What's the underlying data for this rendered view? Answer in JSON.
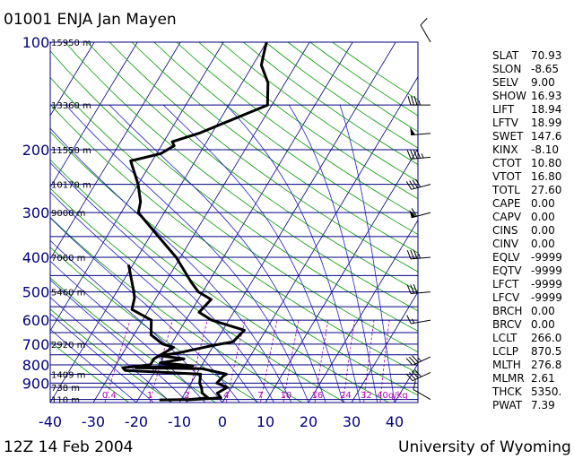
{
  "header": {
    "title": "01001 ENJA Jan Mayen",
    "date": "12Z 14 Feb 2004",
    "credit": "University of Wyoming"
  },
  "colors": {
    "axis_text": "#000080",
    "isobar": "#000080",
    "isotherm": "#000080",
    "dry_adiabat": "#009900",
    "moist_adiabat": "#2020c0",
    "mixing_ratio": "#b000b0",
    "sounding": "#000000"
  },
  "chart_data": {
    "type": "line",
    "chart_kind": "skew-T log-P diagram",
    "xlim": [
      -40,
      45
    ],
    "ylim": [
      1020,
      100
    ],
    "y_scale": "log",
    "pressure_ticks": [
      100,
      200,
      300,
      400,
      500,
      600,
      700,
      800,
      900
    ],
    "temp_ticks": [
      -40,
      -30,
      -20,
      -10,
      0,
      10,
      20,
      30,
      40
    ],
    "height_labels": [
      {
        "p": 100,
        "text": "15950 m"
      },
      {
        "p": 150,
        "text": "13360 m"
      },
      {
        "p": 200,
        "text": "11550 m"
      },
      {
        "p": 250,
        "text": "10170 m"
      },
      {
        "p": 300,
        "text": "9000 m"
      },
      {
        "p": 400,
        "text": "7060 m"
      },
      {
        "p": 500,
        "text": "5460 m"
      },
      {
        "p": 700,
        "text": "2920 m"
      },
      {
        "p": 850,
        "text": "1409 m"
      },
      {
        "p": 925,
        "text": "738 m"
      },
      {
        "p": 1000,
        "text": "110 m"
      }
    ],
    "mixing_ratio_labels": [
      "0.4",
      "1",
      "2",
      "4",
      "7",
      "10",
      "16",
      "24",
      "32",
      "40g/kg"
    ],
    "temperature_profile": [
      {
        "p": 1003,
        "t": -9
      },
      {
        "p": 1000,
        "t": -7
      },
      {
        "p": 990,
        "t": -1
      },
      {
        "p": 960,
        "t": -2.5
      },
      {
        "p": 925,
        "t": -1
      },
      {
        "p": 900,
        "t": -4
      },
      {
        "p": 860,
        "t": -3.5
      },
      {
        "p": 850,
        "t": -3
      },
      {
        "p": 820,
        "t": -9.5
      },
      {
        "p": 815,
        "t": -25
      },
      {
        "p": 805,
        "t": -12
      },
      {
        "p": 790,
        "t": -20
      },
      {
        "p": 770,
        "t": -15
      },
      {
        "p": 755,
        "t": -21
      },
      {
        "p": 740,
        "t": -17
      },
      {
        "p": 720,
        "t": -13
      },
      {
        "p": 705,
        "t": -10
      },
      {
        "p": 690,
        "t": -6
      },
      {
        "p": 640,
        "t": -5
      },
      {
        "p": 600,
        "t": -14
      },
      {
        "p": 570,
        "t": -18
      },
      {
        "p": 525,
        "t": -17
      },
      {
        "p": 500,
        "t": -21
      },
      {
        "p": 470,
        "t": -24
      },
      {
        "p": 400,
        "t": -31
      },
      {
        "p": 350,
        "t": -38
      },
      {
        "p": 300,
        "t": -46
      },
      {
        "p": 280,
        "t": -47
      },
      {
        "p": 250,
        "t": -50
      },
      {
        "p": 215,
        "t": -55
      },
      {
        "p": 205,
        "t": -49
      },
      {
        "p": 195,
        "t": -47
      },
      {
        "p": 190,
        "t": -48
      },
      {
        "p": 180,
        "t": -43
      },
      {
        "p": 150,
        "t": -31
      },
      {
        "p": 130,
        "t": -34
      },
      {
        "p": 116,
        "t": -38
      },
      {
        "p": 108,
        "t": -39
      },
      {
        "p": 100,
        "t": -40
      }
    ],
    "dewpoint_profile": [
      {
        "p": 1003,
        "t": -15
      },
      {
        "p": 1000,
        "t": -8
      },
      {
        "p": 990,
        "t": -4
      },
      {
        "p": 960,
        "t": -6
      },
      {
        "p": 925,
        "t": -7
      },
      {
        "p": 900,
        "t": -8
      },
      {
        "p": 850,
        "t": -9
      },
      {
        "p": 830,
        "t": -27
      },
      {
        "p": 815,
        "t": -28
      },
      {
        "p": 800,
        "t": -22
      },
      {
        "p": 770,
        "t": -22
      },
      {
        "p": 750,
        "t": -21
      },
      {
        "p": 715,
        "t": -19
      },
      {
        "p": 700,
        "t": -22
      },
      {
        "p": 660,
        "t": -26
      },
      {
        "p": 600,
        "t": -28
      },
      {
        "p": 560,
        "t": -34
      },
      {
        "p": 520,
        "t": -35
      },
      {
        "p": 500,
        "t": -36
      },
      {
        "p": 420,
        "t": -41
      }
    ]
  },
  "station_indices": [
    {
      "key": "SLAT",
      "value": "70.93"
    },
    {
      "key": "SLON",
      "value": "-8.65"
    },
    {
      "key": "SELV",
      "value": "9.00"
    },
    {
      "key": "SHOW",
      "value": "16.93"
    },
    {
      "key": "LIFT",
      "value": "18.94"
    },
    {
      "key": "LFTV",
      "value": "18.99"
    },
    {
      "key": "SWET",
      "value": "147.6"
    },
    {
      "key": "KINX",
      "value": "-8.10"
    },
    {
      "key": "CTOT",
      "value": "10.80"
    },
    {
      "key": "VTOT",
      "value": "16.80"
    },
    {
      "key": "TOTL",
      "value": "27.60"
    },
    {
      "key": "CAPE",
      "value": "0.00"
    },
    {
      "key": "CAPV",
      "value": "0.00"
    },
    {
      "key": "CINS",
      "value": "0.00"
    },
    {
      "key": "CINV",
      "value": "0.00"
    },
    {
      "key": "EQLV",
      "value": "-9999"
    },
    {
      "key": "EQTV",
      "value": "-9999"
    },
    {
      "key": "LFCT",
      "value": "-9999"
    },
    {
      "key": "LFCV",
      "value": "-9999"
    },
    {
      "key": "BRCH",
      "value": "0.00"
    },
    {
      "key": "BRCV",
      "value": "0.00"
    },
    {
      "key": "LCLT",
      "value": "266.0"
    },
    {
      "key": "LCLP",
      "value": "870.5"
    },
    {
      "key": "MLTH",
      "value": "276.8"
    },
    {
      "key": "MLMR",
      "value": "2.61"
    },
    {
      "key": "THCK",
      "value": "5350."
    },
    {
      "key": "PWAT",
      "value": "7.39"
    }
  ],
  "wind_barbs": [
    {
      "p": 100,
      "dir": 330,
      "speed_kt": 10
    },
    {
      "p": 150,
      "dir": 270,
      "speed_kt": 35
    },
    {
      "p": 180,
      "dir": 265,
      "speed_kt": 50
    },
    {
      "p": 210,
      "dir": 265,
      "speed_kt": 45
    },
    {
      "p": 250,
      "dir": 255,
      "speed_kt": 40
    },
    {
      "p": 300,
      "dir": 255,
      "speed_kt": 60
    },
    {
      "p": 400,
      "dir": 265,
      "speed_kt": 35
    },
    {
      "p": 500,
      "dir": 265,
      "speed_kt": 30
    },
    {
      "p": 600,
      "dir": 260,
      "speed_kt": 15
    },
    {
      "p": 760,
      "dir": 245,
      "speed_kt": 35
    },
    {
      "p": 840,
      "dir": 245,
      "speed_kt": 40
    },
    {
      "p": 1000,
      "dir": 300,
      "speed_kt": 10
    }
  ]
}
